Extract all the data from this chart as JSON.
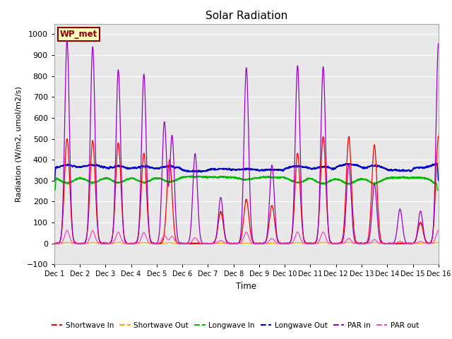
{
  "title": "Solar Radiation",
  "ylabel": "Radiation (W/m2, umol/m2/s)",
  "xlabel": "Time",
  "ylim": [
    -100,
    1050
  ],
  "yticks": [
    -100,
    0,
    100,
    200,
    300,
    400,
    500,
    600,
    700,
    800,
    900,
    1000
  ],
  "xtick_labels": [
    "Dec 1",
    "Dec 2",
    "Dec 3",
    "Dec 4",
    "Dec 5",
    "Dec 6",
    "Dec 7",
    "Dec 8",
    "Dec 9",
    "Dec 10",
    "Dec 11",
    "Dec 12",
    "Dec 13",
    "Dec 14",
    "Dec 15",
    "Dec 16"
  ],
  "station_label": "WP_met",
  "station_label_color": "#8B0000",
  "station_box_facecolor": "#FFFFC0",
  "station_box_edgecolor": "#8B0000",
  "fig_bg_color": "#FFFFFF",
  "plot_bg_color": "#E8E8E8",
  "grid_color": "#FFFFFF",
  "colors": {
    "shortwave_in": "#FF0000",
    "shortwave_out": "#FFA500",
    "longwave_in": "#00BB00",
    "longwave_out": "#0000CC",
    "par_in": "#9900CC",
    "par_out": "#FF44BB"
  },
  "par_in_peaks": [
    970,
    0,
    940,
    0,
    830,
    0,
    810,
    0,
    580,
    515,
    430,
    220,
    0,
    840,
    0,
    375,
    0,
    850,
    845,
    0,
    380,
    285,
    165,
    155,
    0,
    955
  ],
  "par_in_centers": [
    0.5,
    0,
    1.5,
    0,
    2.5,
    0,
    3.5,
    0,
    4.3,
    4.6,
    5.5,
    6.5,
    0,
    7.5,
    0,
    8.5,
    0,
    9.5,
    10.5,
    0,
    11.5,
    12.5,
    13.5,
    14.3,
    0,
    15.0
  ],
  "sw_in_peaks": [
    500,
    490,
    480,
    430,
    400,
    150,
    210,
    180,
    430,
    510,
    510,
    470,
    100,
    510
  ],
  "sw_in_centers": [
    0.5,
    1.5,
    2.5,
    3.5,
    4.5,
    6.5,
    7.5,
    8.5,
    9.5,
    10.5,
    11.5,
    12.5,
    14.3,
    15.0
  ],
  "lw_in_base": 320,
  "lw_out_base": 355,
  "n_points": 3000
}
